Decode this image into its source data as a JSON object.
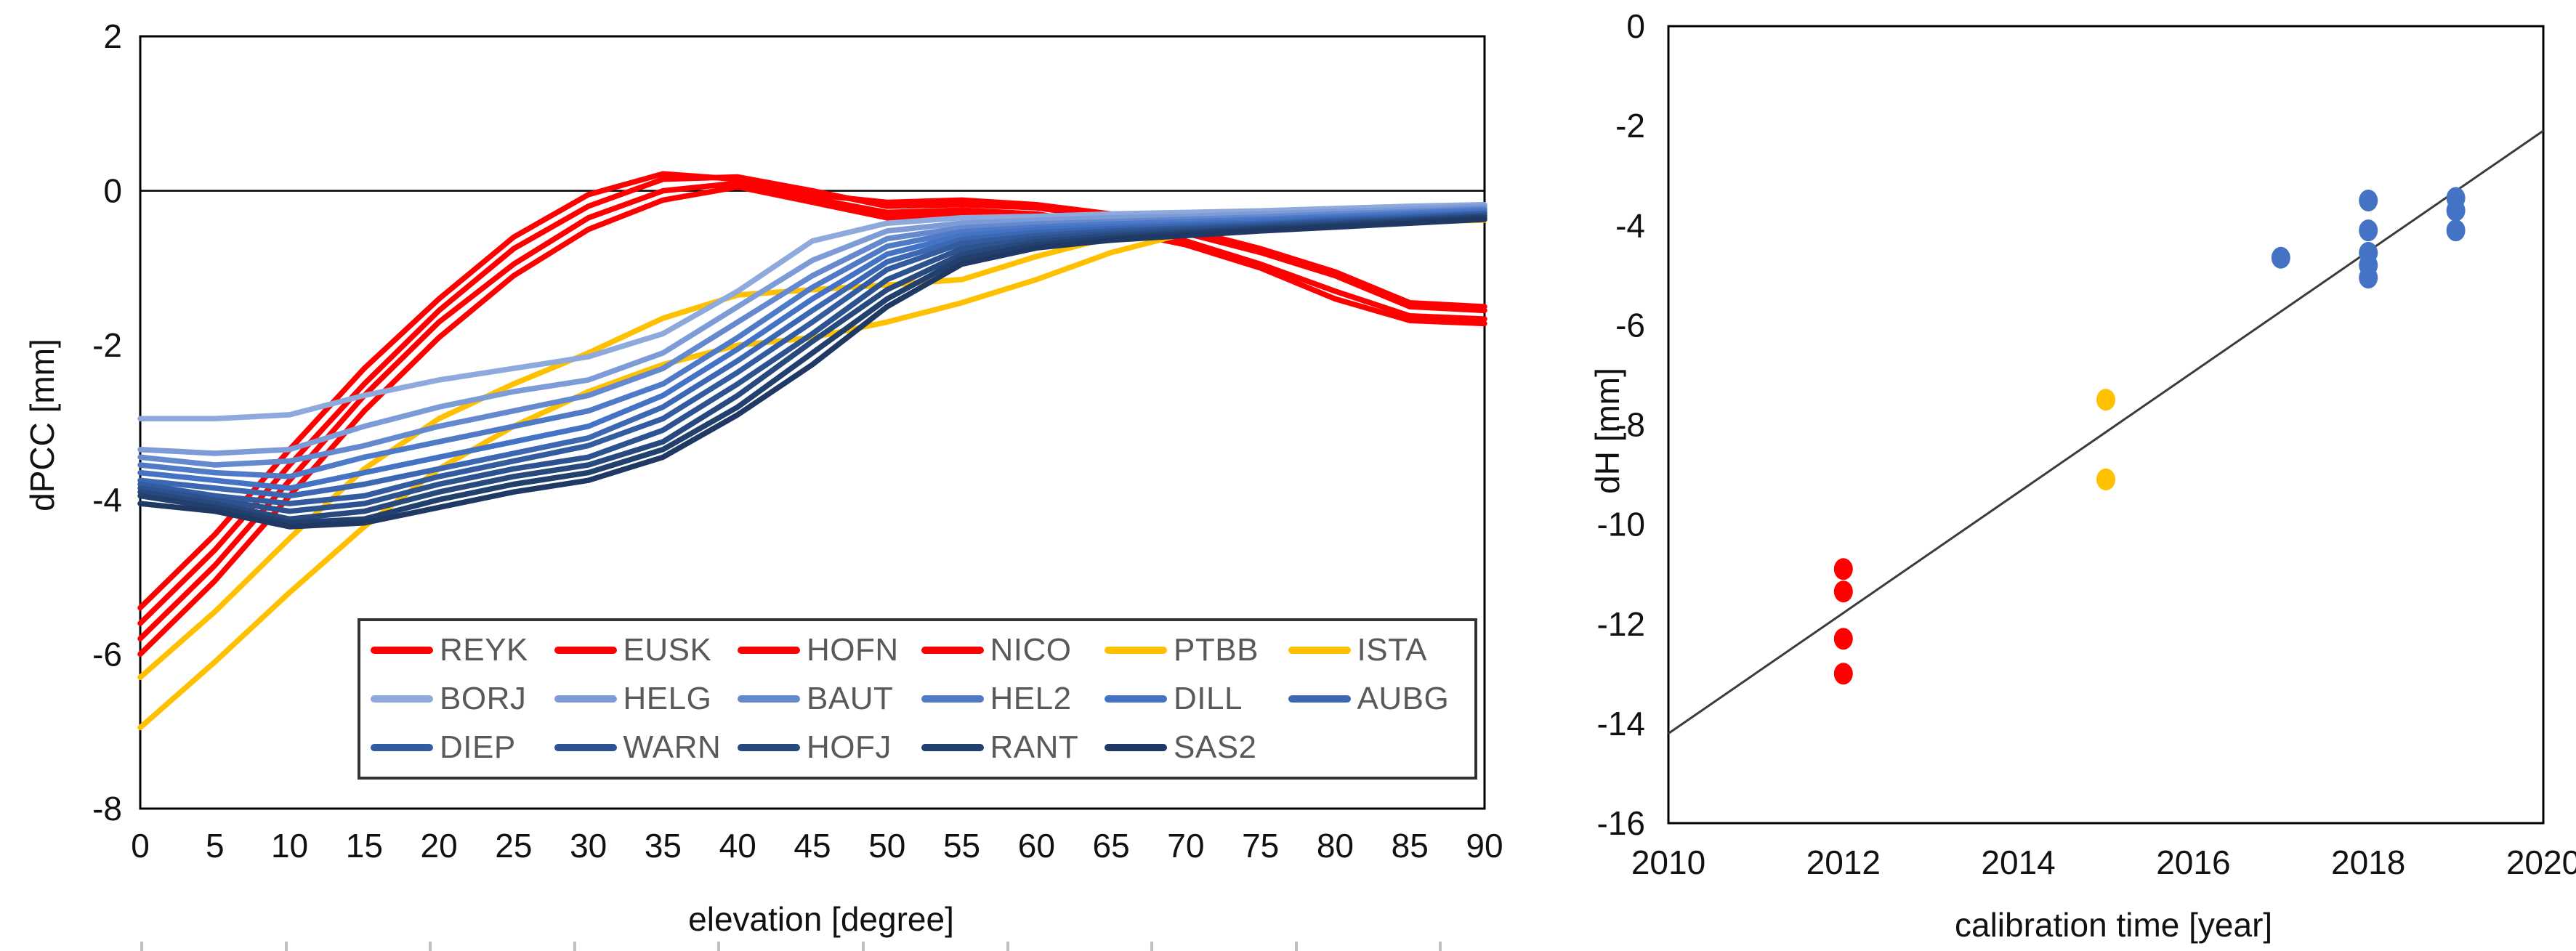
{
  "figure": {
    "background": "#ffffff",
    "axis_color": "#000000",
    "tick_color": "#111111",
    "legend_text_color": "#595959"
  },
  "chart_data": [
    {
      "type": "line",
      "title": "",
      "xlabel": "elevation [degree]",
      "ylabel": "dPCC [mm]",
      "xlim": [
        0,
        90
      ],
      "ylim": [
        -8,
        2
      ],
      "xticks": [
        0,
        5,
        10,
        15,
        20,
        25,
        30,
        35,
        40,
        45,
        50,
        55,
        60,
        65,
        70,
        75,
        80,
        85,
        90
      ],
      "yticks": [
        2,
        0,
        -2,
        -4,
        -6,
        -8
      ],
      "grid": false,
      "zero_line": true,
      "legend_position": "inside-bottom",
      "x": [
        0,
        5,
        10,
        15,
        20,
        25,
        30,
        35,
        40,
        45,
        50,
        55,
        60,
        65,
        70,
        75,
        80,
        85,
        90
      ],
      "series": [
        {
          "name": "REYK",
          "color": "#FE0000",
          "values": [
            -5.4,
            -4.45,
            -3.35,
            -2.3,
            -1.4,
            -0.6,
            -0.05,
            0.22,
            0.15,
            -0.05,
            -0.15,
            -0.12,
            -0.18,
            -0.3,
            -0.5,
            -0.75,
            -1.05,
            -1.45,
            -1.5
          ]
        },
        {
          "name": "EUSK",
          "color": "#FE0000",
          "values": [
            -5.6,
            -4.65,
            -3.55,
            -2.5,
            -1.55,
            -0.75,
            -0.2,
            0.15,
            0.18,
            0.0,
            -0.2,
            -0.18,
            -0.22,
            -0.35,
            -0.55,
            -0.8,
            -1.1,
            -1.5,
            -1.55
          ]
        },
        {
          "name": "HOFN",
          "color": "#FE0000",
          "values": [
            -5.8,
            -4.85,
            -3.75,
            -2.65,
            -1.7,
            -0.95,
            -0.35,
            0.0,
            0.1,
            -0.1,
            -0.28,
            -0.25,
            -0.3,
            -0.45,
            -0.65,
            -0.95,
            -1.3,
            -1.62,
            -1.66
          ]
        },
        {
          "name": "NICO",
          "color": "#FE0000",
          "values": [
            -6.0,
            -5.05,
            -3.95,
            -2.85,
            -1.9,
            -1.1,
            -0.5,
            -0.12,
            0.05,
            -0.15,
            -0.35,
            -0.3,
            -0.38,
            -0.5,
            -0.7,
            -1.0,
            -1.4,
            -1.68,
            -1.72
          ]
        },
        {
          "name": "PTBB",
          "color": "#FFC000",
          "values": [
            -6.3,
            -5.45,
            -4.5,
            -3.6,
            -2.95,
            -2.5,
            -2.1,
            -1.65,
            -1.35,
            -1.28,
            -1.22,
            -1.15,
            -0.85,
            -0.6,
            -0.45,
            -0.38,
            -0.33,
            -0.3,
            -0.28
          ]
        },
        {
          "name": "ISTA",
          "color": "#FFC000",
          "values": [
            -6.95,
            -6.1,
            -5.2,
            -4.35,
            -3.6,
            -3.05,
            -2.6,
            -2.25,
            -2.0,
            -1.9,
            -1.7,
            -1.45,
            -1.15,
            -0.8,
            -0.55,
            -0.45,
            -0.42,
            -0.4,
            -0.38
          ]
        },
        {
          "name": "BORJ",
          "color": "#8EA9DB",
          "values": [
            -2.95,
            -2.95,
            -2.9,
            -2.65,
            -2.45,
            -2.3,
            -2.15,
            -1.85,
            -1.3,
            -0.65,
            -0.42,
            -0.35,
            -0.33,
            -0.3,
            -0.28,
            -0.26,
            -0.23,
            -0.2,
            -0.18
          ]
        },
        {
          "name": "HELG",
          "color": "#7D9BD6",
          "values": [
            -3.35,
            -3.4,
            -3.35,
            -3.05,
            -2.8,
            -2.6,
            -2.45,
            -2.1,
            -1.5,
            -0.9,
            -0.52,
            -0.42,
            -0.38,
            -0.35,
            -0.33,
            -0.3,
            -0.27,
            -0.24,
            -0.2
          ]
        },
        {
          "name": "BAUT",
          "color": "#6589CE",
          "values": [
            -3.45,
            -3.55,
            -3.5,
            -3.3,
            -3.05,
            -2.85,
            -2.65,
            -2.3,
            -1.7,
            -1.1,
            -0.62,
            -0.48,
            -0.43,
            -0.4,
            -0.37,
            -0.34,
            -0.3,
            -0.27,
            -0.23
          ]
        },
        {
          "name": "HEL2",
          "color": "#4F7AC7",
          "values": [
            -3.55,
            -3.65,
            -3.7,
            -3.45,
            -3.25,
            -3.05,
            -2.85,
            -2.5,
            -1.9,
            -1.25,
            -0.72,
            -0.53,
            -0.47,
            -0.43,
            -0.4,
            -0.37,
            -0.33,
            -0.29,
            -0.25
          ]
        },
        {
          "name": "DILL",
          "color": "#4472C4",
          "values": [
            -3.65,
            -3.75,
            -3.85,
            -3.65,
            -3.45,
            -3.25,
            -3.05,
            -2.65,
            -2.05,
            -1.4,
            -0.82,
            -0.58,
            -0.5,
            -0.46,
            -0.43,
            -0.39,
            -0.35,
            -0.31,
            -0.27
          ]
        },
        {
          "name": "AUBG",
          "color": "#3C68B3",
          "values": [
            -3.75,
            -3.85,
            -3.95,
            -3.8,
            -3.6,
            -3.4,
            -3.2,
            -2.8,
            -2.2,
            -1.55,
            -0.92,
            -0.63,
            -0.54,
            -0.49,
            -0.45,
            -0.42,
            -0.37,
            -0.33,
            -0.29
          ]
        },
        {
          "name": "DIEP",
          "color": "#335CA0",
          "values": [
            -3.8,
            -3.95,
            -4.05,
            -3.95,
            -3.7,
            -3.5,
            -3.3,
            -2.95,
            -2.35,
            -1.7,
            -1.02,
            -0.68,
            -0.58,
            -0.52,
            -0.48,
            -0.44,
            -0.39,
            -0.35,
            -0.3
          ]
        },
        {
          "name": "WARN",
          "color": "#2C538F",
          "values": [
            -3.85,
            -4.0,
            -4.15,
            -4.05,
            -3.8,
            -3.6,
            -3.45,
            -3.1,
            -2.5,
            -1.85,
            -1.15,
            -0.75,
            -0.62,
            -0.55,
            -0.5,
            -0.46,
            -0.41,
            -0.37,
            -0.32
          ]
        },
        {
          "name": "HOFJ",
          "color": "#27497E",
          "values": [
            -3.9,
            -4.05,
            -4.25,
            -4.15,
            -3.9,
            -3.7,
            -3.55,
            -3.25,
            -2.65,
            -1.95,
            -1.28,
            -0.82,
            -0.66,
            -0.58,
            -0.53,
            -0.48,
            -0.43,
            -0.38,
            -0.33
          ]
        },
        {
          "name": "RANT",
          "color": "#22406E",
          "values": [
            -3.95,
            -4.1,
            -4.3,
            -4.25,
            -4.0,
            -3.8,
            -3.65,
            -3.35,
            -2.8,
            -2.1,
            -1.4,
            -0.88,
            -0.7,
            -0.61,
            -0.55,
            -0.5,
            -0.45,
            -0.4,
            -0.35
          ]
        },
        {
          "name": "SAS2",
          "color": "#1F3864",
          "values": [
            -4.05,
            -4.15,
            -4.35,
            -4.3,
            -4.1,
            -3.9,
            -3.75,
            -3.45,
            -2.9,
            -2.25,
            -1.5,
            -0.95,
            -0.74,
            -0.64,
            -0.58,
            -0.52,
            -0.47,
            -0.42,
            -0.37
          ]
        }
      ]
    },
    {
      "type": "scatter",
      "title": "",
      "xlabel": "calibration time [year]",
      "ylabel": "dH [mm]",
      "xlim": [
        2010,
        2020
      ],
      "ylim": [
        -16,
        0
      ],
      "xticks": [
        2010,
        2012,
        2014,
        2016,
        2018,
        2020
      ],
      "yticks": [
        0,
        -2,
        -4,
        -6,
        -8,
        -10,
        -12,
        -14,
        -16
      ],
      "grid": false,
      "series": [
        {
          "name": "red-points",
          "color": "#FE0000",
          "points": [
            [
              2012,
              -10.9
            ],
            [
              2012,
              -11.35
            ],
            [
              2012,
              -12.3
            ],
            [
              2012,
              -13.0
            ]
          ]
        },
        {
          "name": "gold-points",
          "color": "#FFC000",
          "points": [
            [
              2015,
              -7.5
            ],
            [
              2015,
              -9.1
            ]
          ]
        },
        {
          "name": "blue-points",
          "color": "#4472C4",
          "points": [
            [
              2017,
              -4.65
            ],
            [
              2018,
              -3.5
            ],
            [
              2018,
              -4.1
            ],
            [
              2018,
              -4.55
            ],
            [
              2018,
              -4.8
            ],
            [
              2018,
              -5.05
            ],
            [
              2019,
              -3.45
            ],
            [
              2019,
              -3.7
            ],
            [
              2019,
              -4.1
            ]
          ]
        }
      ],
      "trend_line": {
        "x1": 2010,
        "y1": -14.2,
        "x2": 2020,
        "y2": -2.1,
        "color": "#3b3b3b"
      }
    }
  ]
}
